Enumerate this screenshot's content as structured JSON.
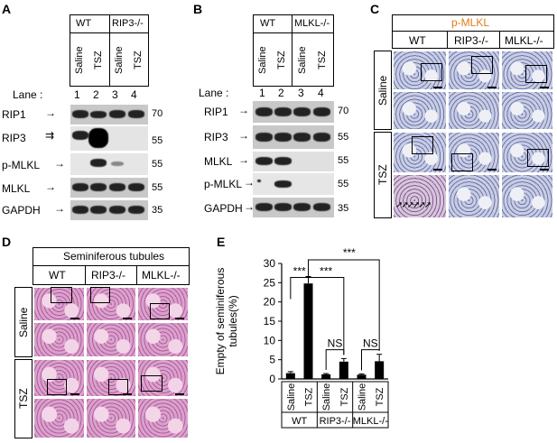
{
  "panels": {
    "A": {
      "letter": "A",
      "groups": [
        "WT",
        "RIP3-/-"
      ],
      "conditions": [
        "Saline",
        "TSZ",
        "Saline",
        "TSZ"
      ],
      "lane_label": "Lane :",
      "lanes": [
        "1",
        "2",
        "3",
        "4"
      ],
      "rows": [
        {
          "label": "RIP1",
          "mw": "70"
        },
        {
          "label": "RIP3",
          "mw": "55"
        },
        {
          "label": "p-MLKL",
          "mw": "55"
        },
        {
          "label": "MLKL",
          "mw": "55"
        },
        {
          "label": "GAPDH",
          "mw": "35"
        }
      ]
    },
    "B": {
      "letter": "B",
      "groups": [
        "WT",
        "MLKL-/-"
      ],
      "conditions": [
        "Saline",
        "TSZ",
        "Saline",
        "TSZ"
      ],
      "lane_label": "Lane :",
      "lanes": [
        "1",
        "2",
        "3",
        "4"
      ],
      "rows": [
        {
          "label": "RIP1",
          "mw": "70"
        },
        {
          "label": "RIP3",
          "mw": "55"
        },
        {
          "label": "MLKL",
          "mw": "55"
        },
        {
          "label": "p-MLKL",
          "mw": "55"
        },
        {
          "label": "GAPDH",
          "mw": "35"
        }
      ]
    },
    "C": {
      "letter": "C",
      "title": "p-MLKL",
      "title_color": "#e07b1a",
      "columns": [
        "WT",
        "RIP3-/-",
        "MLKL-/-"
      ],
      "rows": [
        "Saline",
        "TSZ"
      ]
    },
    "D": {
      "letter": "D",
      "title": "Seminiferous tubules",
      "columns": [
        "WT",
        "RIP3-/-",
        "MLKL-/-"
      ],
      "rows": [
        "Saline",
        "TSZ"
      ]
    },
    "E": {
      "letter": "E",
      "sig_labels": [
        "***",
        "***",
        "***",
        "NS",
        "NS"
      ],
      "groups": [
        "WT",
        "RIP3-/-",
        "MLKL-/-"
      ],
      "conditions": [
        "Saline",
        "TSZ",
        "Saline",
        "TSZ",
        "Saline",
        "TSZ"
      ]
    }
  },
  "chart_data": {
    "type": "bar",
    "categories": [
      "Saline",
      "TSZ",
      "Saline",
      "TSZ",
      "Saline",
      "TSZ"
    ],
    "groups": [
      "WT",
      "RIP3-/-",
      "MLKL-/-"
    ],
    "values": [
      1.5,
      24.8,
      1.2,
      4.5,
      1.1,
      4.6
    ],
    "errors": [
      0.4,
      1.8,
      0.2,
      0.8,
      0.2,
      1.8
    ],
    "ylabel": "Empty of seminiferous tubules(%)",
    "ylim": [
      0,
      30
    ],
    "yticks": [
      "0",
      "5",
      "10",
      "15",
      "20",
      "25",
      "30"
    ],
    "color": "#000000"
  }
}
